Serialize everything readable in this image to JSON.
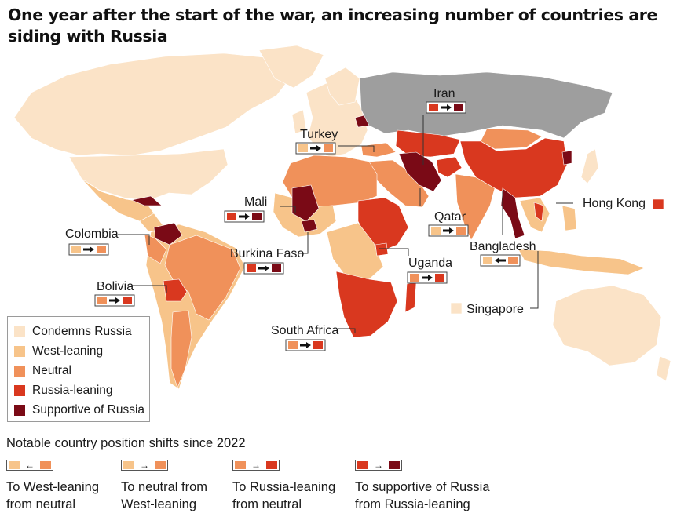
{
  "title": "One year after the start of the war, an increasing number of countries are siding with Russia",
  "categories": {
    "condemns": {
      "label": "Condemns Russia",
      "color": "#fbe3c7"
    },
    "west": {
      "label": "West-leaning",
      "color": "#f7c48a"
    },
    "neutral": {
      "label": "Neutral",
      "color": "#f0915a"
    },
    "russia_leaning": {
      "label": "Russia-leaning",
      "color": "#d9381f"
    },
    "supportive": {
      "label": "Supportive of Russia",
      "color": "#7a0a16"
    },
    "russia": {
      "color": "#9e9e9e"
    }
  },
  "legend_order": [
    "condemns",
    "west",
    "neutral",
    "russia_leaning",
    "supportive"
  ],
  "callouts": {
    "iran": {
      "label": "Iran",
      "shift": [
        "russia_leaning",
        "right",
        "supportive"
      ]
    },
    "turkey": {
      "label": "Turkey",
      "shift": [
        "west",
        "right",
        "neutral"
      ]
    },
    "mali": {
      "label": "Mali",
      "shift": [
        "russia_leaning",
        "right",
        "supportive"
      ]
    },
    "colombia": {
      "label": "Colombia",
      "shift": [
        "west",
        "right",
        "neutral"
      ]
    },
    "qatar": {
      "label": "Qatar",
      "shift": [
        "west",
        "right",
        "neutral"
      ]
    },
    "hong_kong": {
      "label": "Hong Kong",
      "category": "russia_leaning"
    },
    "bangladesh": {
      "label": "Bangladesh",
      "shift": [
        "west",
        "left",
        "neutral"
      ]
    },
    "burkina_faso": {
      "label": "Burkina Faso",
      "shift": [
        "russia_leaning",
        "right",
        "supportive"
      ]
    },
    "uganda": {
      "label": "Uganda",
      "shift": [
        "neutral",
        "right",
        "russia_leaning"
      ]
    },
    "bolivia": {
      "label": "Bolivia",
      "shift": [
        "neutral",
        "right",
        "russia_leaning"
      ]
    },
    "singapore": {
      "label": "Singapore",
      "category": "condemns"
    },
    "south_africa": {
      "label": "South Africa",
      "shift": [
        "neutral",
        "right",
        "russia_leaning"
      ]
    }
  },
  "shifts_section": {
    "title": "Notable country position shifts since 2022",
    "items": [
      {
        "text": "To West-leaning\nfrom neutral",
        "from": "west",
        "arrow": "left",
        "to": "neutral"
      },
      {
        "text": "To neutral from\nWest-leaning",
        "from": "west",
        "arrow": "right",
        "to": "neutral"
      },
      {
        "text": "To Russia-leaning\nfrom neutral",
        "from": "neutral",
        "arrow": "right",
        "to": "russia_leaning"
      },
      {
        "text": "To supportive of Russia\nfrom Russia-leaning",
        "from": "russia_leaning",
        "arrow": "right",
        "to": "supportive"
      }
    ]
  }
}
